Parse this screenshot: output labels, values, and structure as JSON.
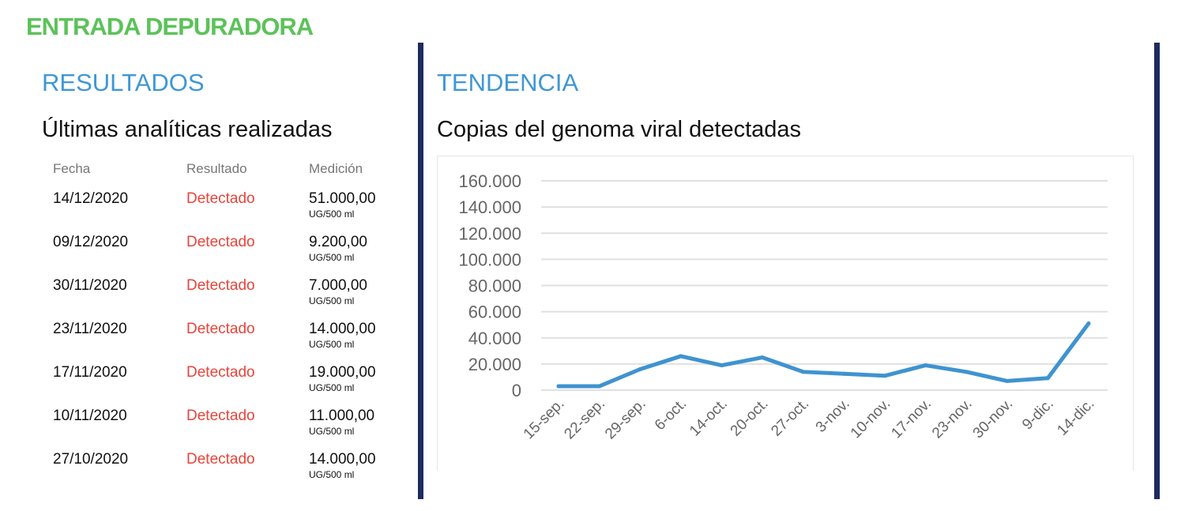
{
  "title": "ENTRADA DEPURADORA",
  "left": {
    "section": "RESULTADOS",
    "subtitle": "Últimas analíticas realizadas",
    "headers": [
      "Fecha",
      "Resultado",
      "Medición"
    ],
    "rows": [
      {
        "date": "14/12/2020",
        "result": "Detectado",
        "value": "51.000,00",
        "unit": "UG/500 ml"
      },
      {
        "date": "09/12/2020",
        "result": "Detectado",
        "value": "9.200,00",
        "unit": "UG/500 ml"
      },
      {
        "date": "30/11/2020",
        "result": "Detectado",
        "value": "7.000,00",
        "unit": "UG/500 ml"
      },
      {
        "date": "23/11/2020",
        "result": "Detectado",
        "value": "14.000,00",
        "unit": "UG/500 ml"
      },
      {
        "date": "17/11/2020",
        "result": "Detectado",
        "value": "19.000,00",
        "unit": "UG/500 ml"
      },
      {
        "date": "10/11/2020",
        "result": "Detectado",
        "value": "11.000,00",
        "unit": "UG/500 ml"
      },
      {
        "date": "27/10/2020",
        "result": "Detectado",
        "value": "14.000,00",
        "unit": "UG/500 ml"
      }
    ]
  },
  "right": {
    "section": "TENDENCIA",
    "subtitle": "Copias del genoma viral detectadas"
  },
  "chart_data": {
    "type": "line",
    "title": "Copias del genoma viral detectadas",
    "xlabel": "",
    "ylabel": "",
    "categories": [
      "15-sep.",
      "22-sep.",
      "29-sep.",
      "6-oct.",
      "14-oct.",
      "20-oct.",
      "27-oct.",
      "3-nov.",
      "10-nov.",
      "17-nov.",
      "23-nov.",
      "30-nov.",
      "9-dic.",
      "14-dic."
    ],
    "values": [
      3000,
      3000,
      16000,
      26000,
      19000,
      25000,
      14000,
      12500,
      11000,
      19000,
      14000,
      7000,
      9200,
      51000
    ],
    "ylim": [
      0,
      160000
    ],
    "yticks": [
      0,
      20000,
      40000,
      60000,
      80000,
      100000,
      120000,
      140000,
      160000
    ],
    "ytick_labels": [
      "0",
      "20.000",
      "40.000",
      "60.000",
      "80.000",
      "100.000",
      "120.000",
      "140.000",
      "160.000"
    ],
    "grid": true,
    "line_color": "#3f93d0"
  }
}
